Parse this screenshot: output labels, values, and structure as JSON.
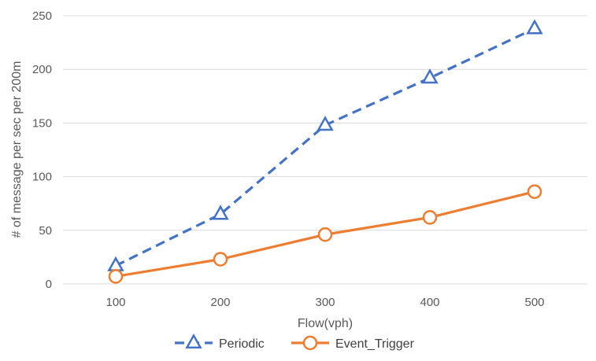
{
  "chart_data": {
    "type": "line",
    "title": "",
    "xlabel": "Flow(vph)",
    "ylabel": "# of message per sec per 200m",
    "x": [
      100,
      200,
      300,
      400,
      500
    ],
    "x_tick_labels": [
      "100",
      "200",
      "300",
      "400",
      "500"
    ],
    "ylim": [
      0,
      250
    ],
    "y_ticks": [
      0,
      50,
      100,
      150,
      200,
      250
    ],
    "y_tick_labels": [
      "0",
      "50",
      "100",
      "150",
      "200",
      "250"
    ],
    "grid": "horizontal",
    "legend": "bottom",
    "series": [
      {
        "name": "Periodic",
        "values": [
          17,
          65,
          148,
          192,
          238
        ],
        "color": "#4472C4",
        "line_style": "dashed",
        "marker": "triangle"
      },
      {
        "name": "Event_Trigger",
        "values": [
          7,
          23,
          46,
          62,
          86
        ],
        "color": "#ED7D31",
        "line_style": "solid",
        "marker": "circle"
      }
    ]
  }
}
